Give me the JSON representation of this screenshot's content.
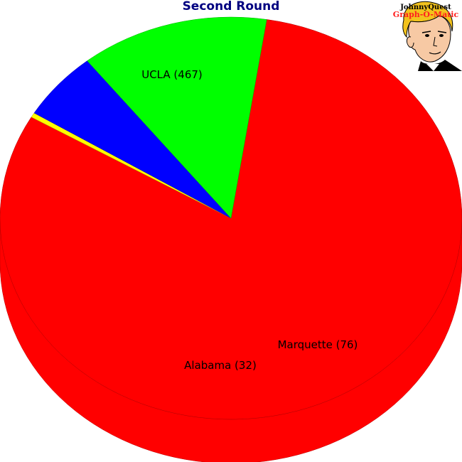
{
  "chart_data": {
    "type": "pie",
    "title": "Second Round",
    "categories": [
      "UCLA",
      "Alabama",
      "Marquette"
    ],
    "values": [
      467,
      32,
      76
    ],
    "labels": [
      "UCLA (467)",
      "Alabama (32)",
      "Marquette (76)"
    ],
    "colors": [
      "#ff0000",
      "#0000ff",
      "#00ff00"
    ],
    "legend": "none",
    "style": "3d"
  },
  "logo": {
    "line1": "JohnnyQuest",
    "line2": "Graph-O-Matic"
  }
}
